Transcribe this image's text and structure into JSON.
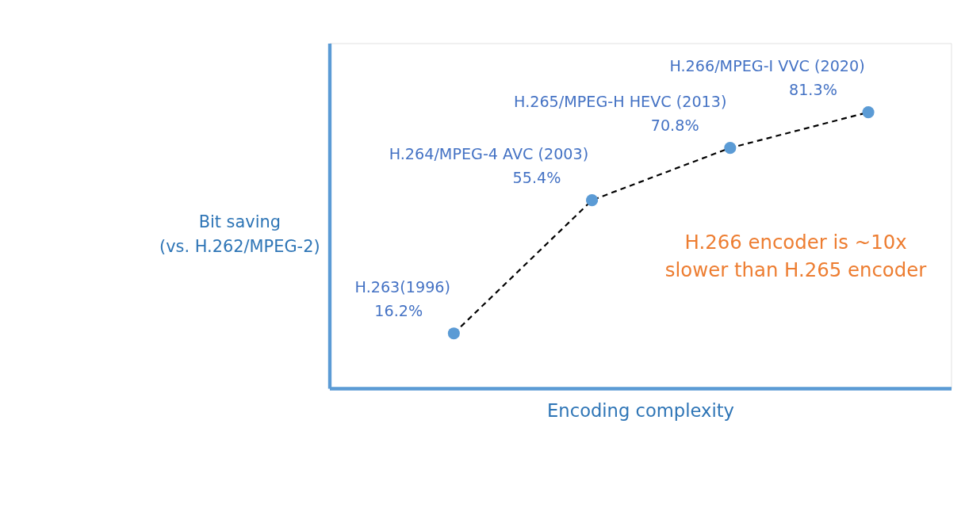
{
  "chart_data": {
    "type": "line",
    "xlabel": "Encoding complexity",
    "ylabel": "Bit saving (vs. H.262/MPEG-2)",
    "categories": [
      null,
      null,
      null,
      null
    ],
    "series": [
      {
        "color": "#000000",
        "colors": [
          "#5b9bd5",
          "#5b9bd5",
          "#5b9bd5",
          "#5b9bd5"
        ],
        "values": [
          16.2,
          55.4,
          70.8,
          81.3
        ],
        "value_labels": [
          "16.2%",
          "55.4%",
          "70.8%",
          "81.3%"
        ]
      }
    ],
    "marker": "circle",
    "line_style": "dashed",
    "grid": false,
    "annotations": [
      "H.263(1996)",
      "H.264/MPEG-4 AVC (2003)",
      "H.265/MPEG-H HEVC (2013)",
      "H.266/MPEG-I VVC (2020)",
      "H.266 encoder is ~10x slower than H.265 encoder"
    ]
  }
}
